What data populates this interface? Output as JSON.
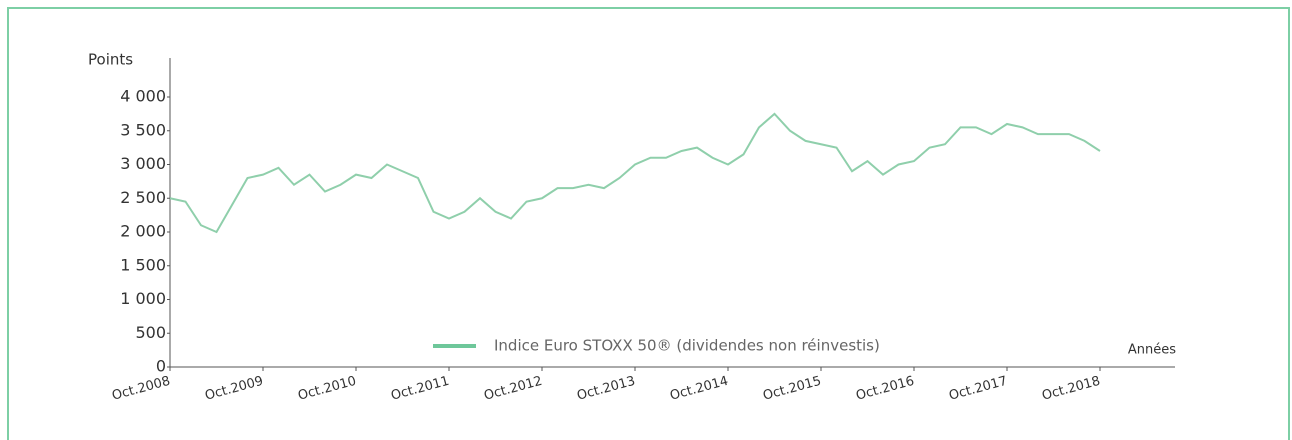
{
  "chart_data": {
    "type": "line",
    "y_label": "Points",
    "x_label": "Années",
    "categories": [
      "Oct.2008",
      null,
      null,
      null,
      null,
      null,
      "Oct.2009",
      null,
      null,
      null,
      null,
      null,
      "Oct.2010",
      null,
      null,
      null,
      null,
      null,
      "Oct.2011",
      null,
      null,
      null,
      null,
      null,
      "Oct.2012",
      null,
      null,
      null,
      null,
      null,
      "Oct.2013",
      null,
      null,
      null,
      null,
      null,
      "Oct.2014",
      null,
      null,
      null,
      null,
      null,
      "Oct.2015",
      null,
      null,
      null,
      null,
      null,
      "Oct.2016",
      null,
      null,
      null,
      null,
      null,
      "Oct.2017",
      null,
      null,
      null,
      null,
      null,
      "Oct.2018"
    ],
    "series": [
      {
        "name": "Indice Euro STOXX 50® (dividendes non réinvestis)",
        "color": "#8fcfab",
        "values": [
          2500,
          2450,
          2100,
          2000,
          2400,
          2800,
          2850,
          2950,
          2700,
          2850,
          2600,
          2700,
          2850,
          2800,
          3000,
          2900,
          2800,
          2300,
          2200,
          2300,
          2500,
          2300,
          2200,
          2450,
          2500,
          2650,
          2650,
          2700,
          2650,
          2800,
          3000,
          3100,
          3100,
          3200,
          3250,
          3100,
          3000,
          3150,
          3550,
          3750,
          3500,
          3350,
          3300,
          3250,
          2900,
          3050,
          2850,
          3000,
          3050,
          3250,
          3300,
          3550,
          3550,
          3450,
          3600,
          3550,
          3450,
          3450,
          3450,
          3350,
          3200
        ]
      }
    ],
    "ylim": [
      0,
      4000
    ],
    "yticks": [
      0,
      500,
      {
        "value": 1000,
        "label": "1 000"
      },
      {
        "value": 1500,
        "label": "1 500"
      },
      {
        "value": 2000,
        "label": "2 000"
      },
      {
        "value": 2500,
        "label": "2 500"
      },
      {
        "value": 3000,
        "label": "3 000"
      },
      {
        "value": 3500,
        "label": "3 500"
      },
      {
        "value": 4000,
        "label": "4 000"
      }
    ],
    "legend_swatch_color": "#6ec79a",
    "legend": "bottom"
  }
}
